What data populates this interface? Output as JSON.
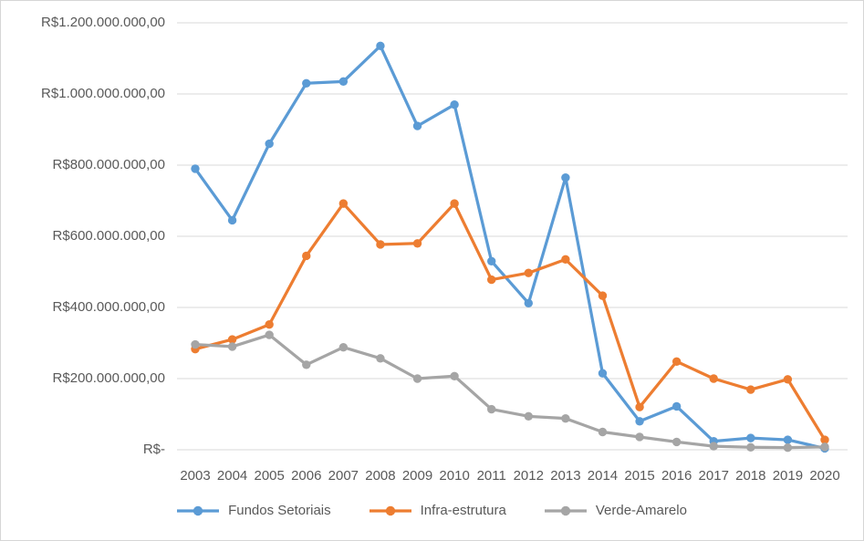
{
  "chart_data": {
    "type": "line",
    "title": "",
    "currency_format": "R$ #.###.###.###,00",
    "categories": [
      "2003",
      "2004",
      "2005",
      "2006",
      "2007",
      "2008",
      "2009",
      "2010",
      "2011",
      "2012",
      "2013",
      "2014",
      "2015",
      "2016",
      "2017",
      "2018",
      "2019",
      "2020"
    ],
    "series": [
      {
        "name": "Fundos Setoriais",
        "color": "#5B9BD5",
        "values": [
          790000000,
          645000000,
          860000000,
          1030000000,
          1035000000,
          1135000000,
          910000000,
          970000000,
          530000000,
          412000000,
          765000000,
          215000000,
          80000000,
          122000000,
          24000000,
          33000000,
          28000000,
          4000000
        ]
      },
      {
        "name": "Infra-estrutura",
        "color": "#ED7D31",
        "values": [
          283000000,
          310000000,
          352000000,
          545000000,
          692000000,
          577000000,
          580000000,
          692000000,
          478000000,
          497000000,
          535000000,
          433000000,
          120000000,
          248000000,
          200000000,
          169000000,
          198000000,
          28000000
        ]
      },
      {
        "name": "Verde-Amarelo",
        "color": "#A5A5A5",
        "values": [
          296000000,
          290000000,
          323000000,
          239000000,
          288000000,
          257000000,
          200000000,
          207000000,
          114000000,
          94000000,
          88000000,
          50000000,
          36000000,
          22000000,
          10000000,
          7000000,
          6000000,
          8000000
        ]
      }
    ],
    "y_axis": {
      "min": 0,
      "max": 1200000000,
      "tick_step": 200000000,
      "ticks": [
        {
          "label": "R$1.200.000.000,00",
          "value": 1200000000
        },
        {
          "label": "R$1.000.000.000,00",
          "value": 1000000000
        },
        {
          "label": "R$800.000.000,00",
          "value": 800000000
        },
        {
          "label": "R$600.000.000,00",
          "value": 600000000
        },
        {
          "label": "R$400.000.000,00",
          "value": 400000000
        },
        {
          "label": "R$200.000.000,00",
          "value": 200000000
        },
        {
          "label": "R$-",
          "value": 0
        }
      ],
      "grid": true
    },
    "x_axis": {
      "grid": false
    },
    "legend_position": "bottom",
    "colors": {
      "gridline": "#D9D9D9",
      "axis_text": "#595959",
      "background": "#FFFFFF",
      "border": "#D6D6D6"
    }
  }
}
